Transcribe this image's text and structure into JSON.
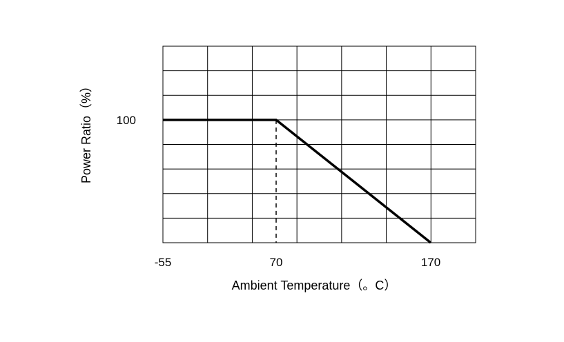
{
  "chart_data": {
    "type": "line",
    "title": "",
    "xlabel": "Ambient Temperature（。C）",
    "ylabel": "Power Ratio（%）",
    "x_tick_labels": [
      "-55",
      "70",
      "170"
    ],
    "y_tick_labels": [
      "100"
    ],
    "series": [
      {
        "x": [
          -55,
          70,
          170
        ],
        "y": [
          100,
          100,
          0
        ],
        "style": "solid",
        "color": "#000000"
      }
    ],
    "annotations": [
      {
        "type": "vertical-dashed-line",
        "x": 70,
        "y_range": [
          0,
          100
        ]
      }
    ],
    "grid": true,
    "legend": "none"
  }
}
